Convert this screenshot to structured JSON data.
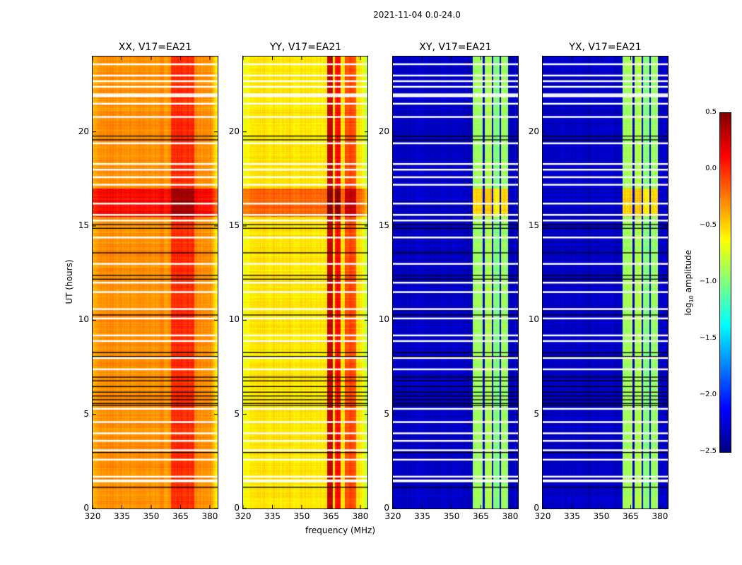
{
  "chart_data": {
    "type": "heatmap",
    "title": "2021-11-04 0.0-24.0",
    "xlabel": "frequency (MHz)",
    "ylabel": "UT (hours)",
    "xlim": [
      320,
      384
    ],
    "ylim": [
      0,
      24
    ],
    "xticks": [
      "320",
      "335",
      "350",
      "365",
      "380"
    ],
    "yticks": [
      "0",
      "5",
      "10",
      "15",
      "20"
    ],
    "panels": [
      {
        "title": "XX, V17=EA21",
        "kind": "parallel",
        "base": -0.3,
        "bands": [
          [
            360,
            372,
            0.0
          ]
        ]
      },
      {
        "title": "YY, V17=EA21",
        "kind": "parallel",
        "base": -0.55,
        "bands": [
          [
            363,
            366,
            0.3
          ],
          [
            367,
            370,
            0.1
          ],
          [
            372,
            378,
            -0.1
          ]
        ]
      },
      {
        "title": "XY, V17=EA21",
        "kind": "cross",
        "base": -2.3,
        "bands": [
          [
            361,
            366,
            -0.9
          ],
          [
            367,
            370.5,
            -0.85
          ],
          [
            371.5,
            374.5,
            -1.0
          ],
          [
            375.5,
            379,
            -0.9
          ]
        ]
      },
      {
        "title": "YX, V17=EA21",
        "kind": "cross",
        "base": -2.3,
        "bands": [
          [
            361,
            366,
            -0.9
          ],
          [
            367,
            370.5,
            -0.85
          ],
          [
            371.5,
            374.5,
            -1.0
          ],
          [
            375.5,
            379,
            -0.9
          ]
        ]
      }
    ],
    "flagged_hours_white": [
      23.6,
      23.0,
      22.7,
      22.4,
      22.0,
      21.9,
      21.5,
      20.8,
      19.4,
      18.3,
      18.0,
      17.6,
      17.2,
      16.2,
      15.6,
      15.3,
      14.4,
      13.0,
      12.0,
      11.5,
      10.6,
      10.1,
      9.2,
      8.9,
      8.0,
      7.4,
      5.3,
      4.6,
      4.0,
      3.6,
      3.1,
      2.6,
      1.7,
      1.5,
      1.45
    ],
    "flagged_hours_black": [
      19.8,
      19.6,
      15.1,
      14.9,
      13.6,
      12.4,
      12.2,
      10.3,
      8.3,
      8.1,
      7.0,
      6.8,
      6.5,
      6.2,
      6.0,
      5.8,
      5.6,
      5.5,
      3.0,
      1.15
    ],
    "colorbar": {
      "label": "log10 amplitude",
      "colormap": "jet",
      "range": [
        -2.5,
        0.5
      ],
      "ticks": [
        "0.5",
        "0.0",
        "−0.5",
        "−1.0",
        "−1.5",
        "−2.0",
        "−2.5"
      ]
    }
  }
}
